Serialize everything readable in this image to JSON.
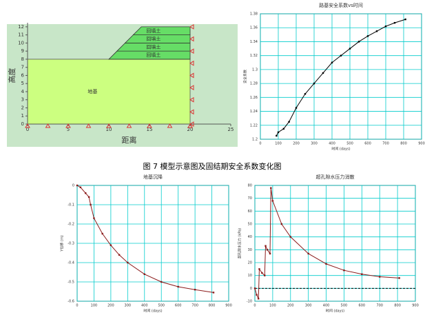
{
  "model": {
    "xlabel": "距离",
    "ylabel": "高度",
    "xlim": [
      0,
      25
    ],
    "ylim": [
      0,
      12.5
    ],
    "xticks": [
      0,
      5,
      10,
      15,
      20,
      25
    ],
    "yticks": [
      0,
      1,
      2,
      3,
      4,
      5,
      6,
      7,
      8,
      9,
      10,
      11,
      12
    ],
    "layers": [
      "回填土",
      "回填土",
      "回填土",
      "回填土"
    ],
    "foundation": "地基"
  },
  "caption": "图 7 模型示意图及固结期安全系数变化图",
  "chart_data": [
    {
      "type": "line",
      "title": "路基安全系数vs时间",
      "xlabel": "时间 (days)",
      "ylabel": "安全系数",
      "color": "#000000",
      "grid": true,
      "x": [
        90,
        100,
        130,
        160,
        200,
        250,
        300,
        350,
        400,
        450,
        500,
        550,
        600,
        650,
        700,
        750,
        810
      ],
      "values": [
        1.205,
        1.21,
        1.215,
        1.225,
        1.245,
        1.265,
        1.28,
        1.295,
        1.31,
        1.32,
        1.33,
        1.34,
        1.348,
        1.355,
        1.362,
        1.367,
        1.372
      ],
      "xlim": [
        0,
        900
      ],
      "xticks": [
        0,
        100,
        200,
        300,
        400,
        500,
        600,
        700,
        800,
        900
      ],
      "ylim": [
        1.2,
        1.38
      ],
      "yticks": [
        1.2,
        1.22,
        1.24,
        1.26,
        1.28,
        1.3,
        1.32,
        1.34,
        1.36,
        1.38
      ]
    },
    {
      "type": "line",
      "title": "地基沉降",
      "xlabel": "时间 (days)",
      "ylabel": "Y位移 (m)",
      "color": "#8b1a1a",
      "grid": true,
      "x": [
        0,
        20,
        50,
        70,
        80,
        100,
        150,
        200,
        250,
        300,
        400,
        500,
        600,
        700,
        810
      ],
      "values": [
        0,
        -0.01,
        -0.04,
        -0.06,
        -0.1,
        -0.17,
        -0.25,
        -0.31,
        -0.36,
        -0.4,
        -0.46,
        -0.5,
        -0.525,
        -0.54,
        -0.555
      ],
      "xlim": [
        0,
        900
      ],
      "xticks": [
        0,
        100,
        200,
        300,
        400,
        500,
        600,
        700,
        800,
        900
      ],
      "ylim": [
        -0.6,
        0
      ],
      "yticks": [
        -0.6,
        -0.5,
        -0.4,
        -0.3,
        -0.2,
        -0.1,
        0
      ]
    },
    {
      "type": "line",
      "title": "超孔隙水压力消散",
      "xlabel": "时间 (days)",
      "ylabel": "超孔隙水压力 (kPa)",
      "color": "#8b1a1a",
      "grid": true,
      "x": [
        0,
        10,
        20,
        25,
        40,
        55,
        60,
        70,
        85,
        90,
        100,
        150,
        200,
        300,
        400,
        500,
        600,
        700,
        810
      ],
      "values": [
        0,
        -5,
        -8,
        15,
        12,
        10,
        33,
        30,
        27,
        78,
        68,
        50,
        40,
        27,
        19,
        14,
        11,
        9,
        8
      ],
      "xlim": [
        0,
        900
      ],
      "xticks": [
        0,
        100,
        200,
        300,
        400,
        500,
        600,
        700,
        800,
        900
      ],
      "ylim": [
        -10,
        80
      ],
      "yticks": [
        -10,
        0,
        10,
        20,
        30,
        40,
        50,
        60,
        70,
        80
      ]
    }
  ]
}
